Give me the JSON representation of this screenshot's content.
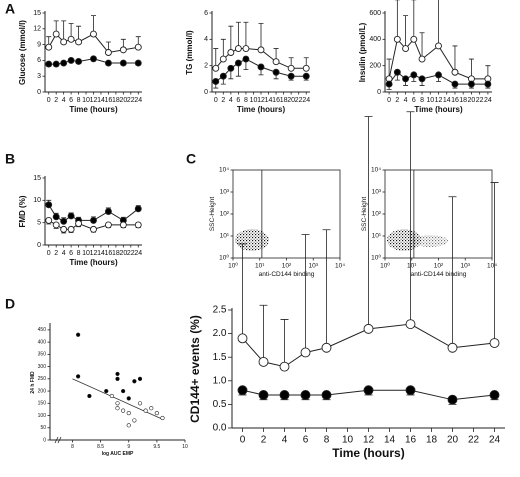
{
  "chart_data": [
    {
      "type": "line",
      "panel_label": "A",
      "ylabel": "Glucose (mmol/l)",
      "xlabel": "Time (hours)",
      "x": [
        0,
        2,
        4,
        6,
        8,
        12,
        16,
        20,
        24
      ],
      "xlim": [
        -1,
        25
      ],
      "xticks": [
        0,
        2,
        4,
        6,
        8,
        10,
        12,
        14,
        16,
        18,
        20,
        22,
        24
      ],
      "ylim": [
        0,
        15
      ],
      "yticks": [
        0,
        3,
        6,
        9,
        12,
        15
      ],
      "series": [
        {
          "color": "#ffffff",
          "values": [
            8.5,
            11,
            9.5,
            10,
            9.5,
            11,
            7.5,
            8,
            8.5
          ],
          "errors": [
            2,
            2.5,
            4,
            3,
            3,
            3.5,
            2,
            2,
            2
          ],
          "error_side": "up"
        },
        {
          "color": "#000000",
          "values": [
            5.3,
            5.3,
            5.5,
            6,
            5.8,
            6.3,
            5.5,
            5.5,
            5.5
          ],
          "errors": [
            0.4,
            0.4,
            0.4,
            0.4,
            0.4,
            0.4,
            0.4,
            0.4,
            0.4
          ],
          "error_side": "down"
        }
      ]
    },
    {
      "type": "line",
      "ylabel": "TG (mmol/l)",
      "xlabel": "Time (hours)",
      "x": [
        0,
        2,
        4,
        6,
        8,
        12,
        16,
        20,
        24
      ],
      "xlim": [
        -1,
        25
      ],
      "xticks": [
        0,
        2,
        4,
        6,
        8,
        10,
        12,
        14,
        16,
        18,
        20,
        22,
        24
      ],
      "ylim": [
        0,
        6
      ],
      "yticks": [
        0,
        2,
        4,
        6
      ],
      "series": [
        {
          "color": "#ffffff",
          "values": [
            1.8,
            2.5,
            3,
            3.3,
            3.3,
            3.2,
            2.3,
            1.8,
            1.8
          ],
          "errors": [
            1.5,
            1.5,
            2,
            2,
            2,
            2,
            1,
            0.8,
            0.8
          ],
          "error_side": "up"
        },
        {
          "color": "#000000",
          "values": [
            0.8,
            1.2,
            1.8,
            2.2,
            2.5,
            1.9,
            1.5,
            1.2,
            1.2
          ],
          "errors": [
            0.5,
            0.6,
            0.8,
            1,
            0.8,
            0.6,
            0.5,
            0.3,
            0.3
          ],
          "error_side": "down"
        }
      ]
    },
    {
      "type": "line",
      "ylabel": "Insulin (pmol/L)",
      "xlabel": "Time (hours)",
      "x": [
        0,
        2,
        4,
        6,
        8,
        12,
        16,
        20,
        24
      ],
      "xlim": [
        -1,
        25
      ],
      "xticks": [
        0,
        2,
        4,
        6,
        8,
        10,
        12,
        14,
        16,
        18,
        20,
        22,
        24
      ],
      "ylim": [
        0,
        600
      ],
      "yticks": [
        0,
        200,
        400,
        600
      ],
      "series": [
        {
          "color": "#ffffff",
          "values": [
            100,
            400,
            330,
            400,
            250,
            350,
            150,
            100,
            100
          ],
          "errors": [
            150,
            300,
            250,
            300,
            200,
            500,
            200,
            150,
            100
          ],
          "error_side": "up"
        },
        {
          "color": "#000000",
          "values": [
            60,
            150,
            100,
            130,
            100,
            130,
            60,
            60,
            60
          ],
          "errors": [
            40,
            60,
            50,
            50,
            50,
            50,
            30,
            30,
            30
          ],
          "error_side": "down"
        }
      ]
    },
    {
      "type": "line",
      "panel_label": "B",
      "ylabel": "FMD (%)",
      "xlabel": "Time (hours)",
      "x": [
        0,
        2,
        4,
        6,
        8,
        12,
        16,
        20,
        24
      ],
      "xlim": [
        -1,
        25
      ],
      "xticks": [
        0,
        2,
        4,
        6,
        8,
        10,
        12,
        14,
        16,
        18,
        20,
        22,
        24
      ],
      "ylim": [
        0,
        15
      ],
      "yticks": [
        0,
        5,
        10,
        15
      ],
      "series": [
        {
          "color": "#000000",
          "values": [
            9,
            6.3,
            5.3,
            6.5,
            5.5,
            5.5,
            7.5,
            5.5,
            8.1
          ],
          "errors": [
            1,
            0.8,
            0.8,
            0.7,
            0.7,
            0.8,
            0.8,
            0.7,
            0.7
          ],
          "error_side": "up"
        },
        {
          "color": "#ffffff",
          "values": [
            5.5,
            4.5,
            3.5,
            3.5,
            4.8,
            3.5,
            4.5,
            4.5,
            4.5
          ],
          "errors": [
            0.8,
            0.8,
            0.8,
            0.7,
            0.7,
            0.6,
            0.6,
            0.6,
            0.6
          ],
          "error_side": "down"
        }
      ]
    },
    {
      "type": "flow",
      "panel_label": "C",
      "ylabel": "SSC-Height",
      "xlabel": "anti-CD144 binding",
      "log": true,
      "xlim": [
        1,
        10000
      ],
      "ylim": [
        1,
        10000
      ],
      "gate": 12,
      "xticks": [
        {
          "value": 1,
          "label": "10⁰"
        },
        {
          "value": 10,
          "label": "10¹"
        },
        {
          "value": 100,
          "label": "10²"
        },
        {
          "value": 1000,
          "label": "10³"
        },
        {
          "value": 10000,
          "label": "10⁴"
        }
      ],
      "yticks": [
        {
          "value": 1,
          "label": "10⁰"
        },
        {
          "value": 10,
          "label": "10¹"
        },
        {
          "value": 100,
          "label": "10²"
        },
        {
          "value": 1000,
          "label": "10³"
        },
        {
          "value": 10000,
          "label": "10⁴"
        }
      ]
    },
    {
      "type": "flow",
      "ylabel": "SSC-Height",
      "xlabel": "anti-CD144 binding",
      "log": true,
      "xlim": [
        1,
        10000
      ],
      "ylim": [
        1,
        10000
      ],
      "gate": 12,
      "xticks": [
        {
          "value": 1,
          "label": "10⁰"
        },
        {
          "value": 10,
          "label": "10¹"
        },
        {
          "value": 100,
          "label": "10²"
        },
        {
          "value": 1000,
          "label": "10³"
        },
        {
          "value": 10000,
          "label": "10⁴"
        }
      ],
      "yticks": [
        {
          "value": 1,
          "label": "10⁰"
        },
        {
          "value": 10,
          "label": "10¹"
        },
        {
          "value": 100,
          "label": "10²"
        },
        {
          "value": 1000,
          "label": "10³"
        },
        {
          "value": 10000,
          "label": "10⁴"
        }
      ]
    },
    {
      "type": "scatter",
      "panel_label": "D",
      "ylabel": "24 h FMD",
      "xlabel": "log AUC EMP",
      "xlim": [
        7.6,
        10
      ],
      "xticks": [
        8,
        8.5,
        9,
        9.5,
        10
      ],
      "ylim": [
        0,
        470
      ],
      "yticks": [
        0,
        50,
        100,
        150,
        200,
        250,
        300,
        350,
        400,
        450
      ],
      "series": [
        {
          "color": "#000000",
          "x": [
            8.1,
            8.1,
            8.3,
            8.6,
            8.8,
            8.9,
            8.8,
            9.1,
            9.2,
            9.0
          ],
          "values": [
            430,
            260,
            180,
            200,
            270,
            200,
            250,
            240,
            250,
            170
          ]
        },
        {
          "color": "#ffffff",
          "x": [
            8.7,
            8.8,
            8.8,
            8.9,
            9.0,
            9.1,
            9.0,
            9.3,
            9.4,
            9.6,
            9.5,
            9.2
          ],
          "values": [
            180,
            150,
            130,
            120,
            110,
            80,
            60,
            120,
            130,
            90,
            110,
            150
          ]
        }
      ],
      "fit": {
        "x": [
          8,
          9.6
        ],
        "values": [
          250,
          85
        ]
      }
    },
    {
      "type": "line",
      "ylabel": "CD144+ events (%)",
      "xlabel": "Time (hours)",
      "x": [
        0,
        2,
        4,
        6,
        8,
        12,
        16,
        20,
        24
      ],
      "xlim": [
        -1,
        25
      ],
      "xticks": [
        0,
        2,
        4,
        6,
        8,
        10,
        12,
        14,
        16,
        18,
        20,
        22,
        24
      ],
      "ylim": [
        0,
        2.5
      ],
      "yticks": [
        {
          "value": 0,
          "label": "0.0"
        },
        0.5,
        {
          "value": 1,
          "label": "1.0"
        },
        1.5,
        {
          "value": 2,
          "label": "2.0"
        },
        2.5
      ],
      "series": [
        {
          "color": "#ffffff",
          "values": [
            1.9,
            1.4,
            1.3,
            1.6,
            1.7,
            2.1,
            2.2,
            1.7,
            1.8
          ],
          "errors": [
            2,
            1.2,
            1,
            2.5,
            2.5,
            4.5,
            4.5,
            3.2,
            3.4
          ],
          "error_side": "up"
        },
        {
          "color": "#000000",
          "values": [
            0.8,
            0.7,
            0.7,
            0.7,
            0.7,
            0.8,
            0.8,
            0.6,
            0.7
          ],
          "errors": [
            0.1,
            0.1,
            0.1,
            0.1,
            0.1,
            0.1,
            0.1,
            0.1,
            0.1
          ],
          "error_side": "down"
        }
      ]
    }
  ]
}
